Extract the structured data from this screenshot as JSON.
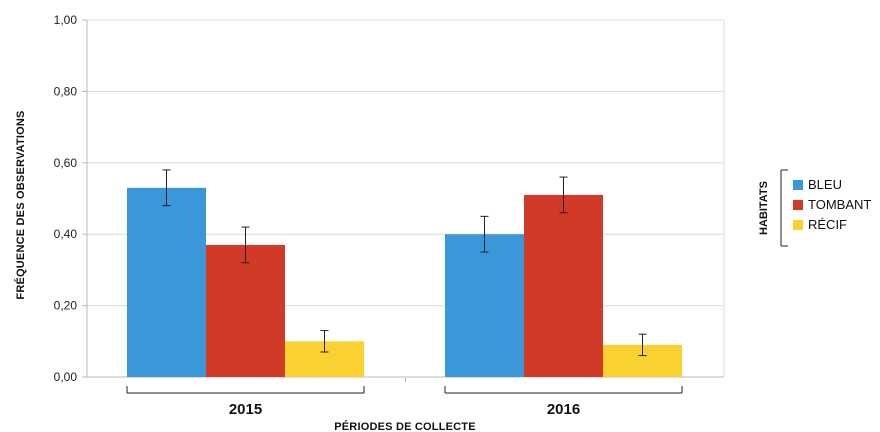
{
  "chart_data": {
    "type": "bar",
    "categories": [
      "2015",
      "2016"
    ],
    "series": [
      {
        "name": "BLEU",
        "color": "#3a97d8",
        "values": [
          0.53,
          0.4
        ],
        "errors": [
          0.05,
          0.05
        ]
      },
      {
        "name": "TOMBANT",
        "color": "#d13a26",
        "values": [
          0.37,
          0.51
        ],
        "errors": [
          0.05,
          0.05
        ]
      },
      {
        "name": "RÉCIF",
        "color": "#f9d232",
        "values": [
          0.1,
          0.09
        ],
        "errors": [
          0.03,
          0.03
        ]
      }
    ],
    "xlabel": "PÉRIODES DE COLLECTE",
    "ylabel": "FRÉQUENCE DES OBSERVATIONS",
    "ylim": [
      0,
      1
    ],
    "yticks": [
      "0,00",
      "0,20",
      "0,40",
      "0,60",
      "0,80",
      "1,00"
    ],
    "ytick_values": [
      0,
      0.2,
      0.4,
      0.6,
      0.8,
      1.0
    ],
    "legend_title": "HABITATS",
    "legend_position": "right",
    "grid": true
  }
}
